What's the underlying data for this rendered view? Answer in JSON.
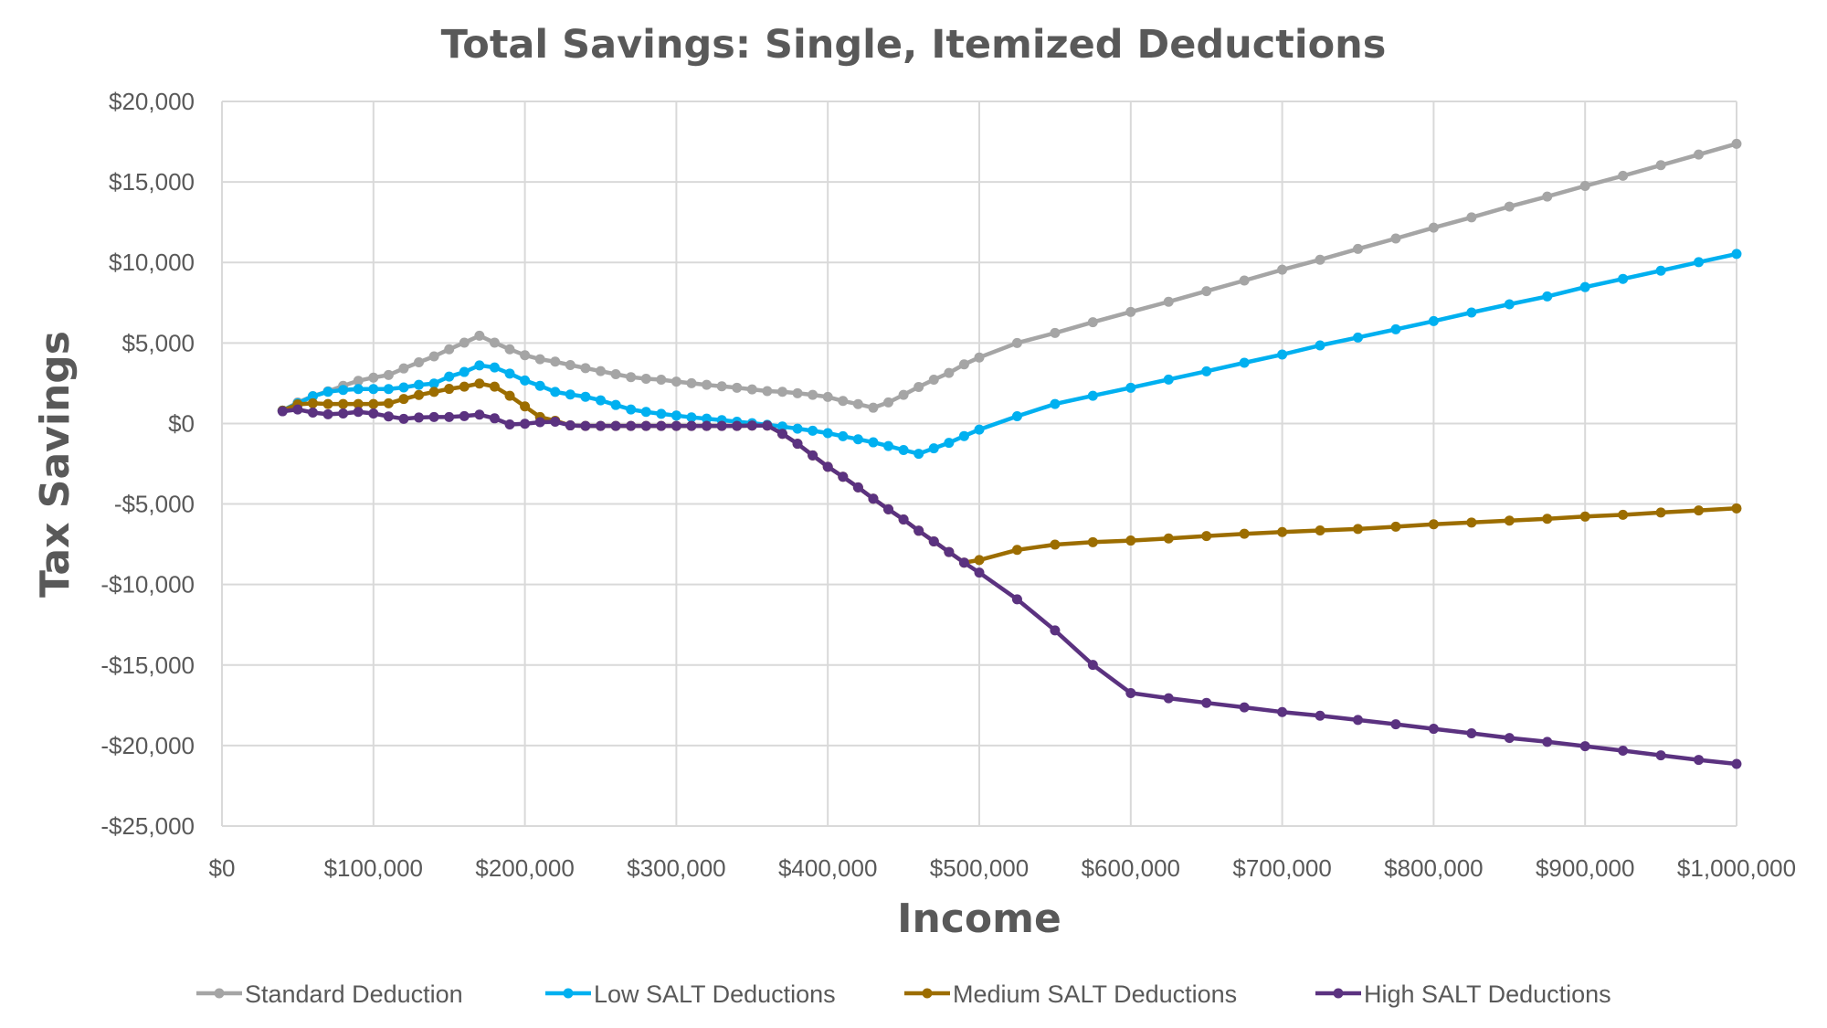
{
  "chart_data": {
    "type": "line",
    "title": "Total Savings: Single, Itemized Deductions",
    "xlabel": "Income",
    "ylabel": "Tax Savings",
    "xlim": [
      0,
      1000000
    ],
    "ylim": [
      -25000,
      20000
    ],
    "x_ticks": [
      0,
      100000,
      200000,
      300000,
      400000,
      500000,
      600000,
      700000,
      800000,
      900000,
      1000000
    ],
    "x_tick_labels": [
      "$0",
      "$100,000",
      "$200,000",
      "$300,000",
      "$400,000",
      "$500,000",
      "$600,000",
      "$700,000",
      "$800,000",
      "$900,000",
      "$1,000,000"
    ],
    "y_ticks": [
      20000,
      15000,
      10000,
      5000,
      0,
      -5000,
      -10000,
      -15000,
      -20000,
      -25000
    ],
    "y_tick_labels": [
      "$20,000",
      "$15,000",
      "$10,000",
      "$5,000",
      "$0",
      "-$5,000",
      "-$10,000",
      "-$15,000",
      "-$20,000",
      "-$25,000"
    ],
    "grid": true,
    "legend_position": "bottom",
    "x": [
      40000,
      50000,
      60000,
      70000,
      80000,
      90000,
      100000,
      110000,
      120000,
      130000,
      140000,
      150000,
      160000,
      170000,
      180000,
      190000,
      200000,
      210000,
      220000,
      230000,
      240000,
      250000,
      260000,
      270000,
      280000,
      290000,
      300000,
      310000,
      320000,
      330000,
      340000,
      350000,
      360000,
      370000,
      380000,
      390000,
      400000,
      410000,
      420000,
      430000,
      440000,
      450000,
      460000,
      470000,
      480000,
      490000,
      500000,
      525000,
      550000,
      575000,
      600000,
      625000,
      650000,
      675000,
      700000,
      725000,
      750000,
      775000,
      800000,
      825000,
      850000,
      875000,
      900000,
      925000,
      950000,
      975000,
      1000000
    ],
    "series": [
      {
        "name": "Standard Deduction",
        "color": "#a5a5a5",
        "values": [
          800,
          1300,
          1700,
          2000,
          2340,
          2650,
          2850,
          3010,
          3420,
          3800,
          4170,
          4610,
          5020,
          5450,
          5020,
          4610,
          4240,
          3990,
          3840,
          3630,
          3440,
          3250,
          3060,
          2880,
          2780,
          2720,
          2600,
          2500,
          2400,
          2310,
          2220,
          2120,
          2010,
          1970,
          1880,
          1780,
          1650,
          1400,
          1200,
          980,
          1310,
          1780,
          2270,
          2720,
          3140,
          3670,
          4100,
          5000,
          5620,
          6290,
          6930,
          7560,
          8220,
          8880,
          9550,
          10170,
          10840,
          11490,
          12160,
          12800,
          13470,
          14090,
          14750,
          15380,
          16040,
          16700,
          17370
        ]
      },
      {
        "name": "Low SALT Deductions",
        "color": "#00b0f0",
        "values": [
          800,
          1250,
          1690,
          1970,
          2080,
          2140,
          2140,
          2140,
          2240,
          2400,
          2480,
          2910,
          3200,
          3610,
          3480,
          3100,
          2670,
          2340,
          1960,
          1800,
          1660,
          1440,
          1150,
          870,
          720,
          600,
          490,
          380,
          300,
          210,
          110,
          20,
          -80,
          -190,
          -320,
          -450,
          -600,
          -790,
          -980,
          -1170,
          -1400,
          -1650,
          -1880,
          -1540,
          -1200,
          -780,
          -380,
          450,
          1210,
          1720,
          2220,
          2730,
          3240,
          3770,
          4280,
          4850,
          5340,
          5850,
          6360,
          6890,
          7400,
          7890,
          8470,
          8980,
          9490,
          10020,
          10530
        ]
      },
      {
        "name": "Medium SALT Deductions",
        "color": "#9c6d00",
        "values": [
          800,
          1190,
          1250,
          1210,
          1210,
          1210,
          1210,
          1250,
          1520,
          1770,
          1960,
          2150,
          2290,
          2480,
          2290,
          1720,
          1060,
          400,
          170,
          -120,
          -150,
          -150,
          -150,
          -150,
          -150,
          -150,
          -150,
          -150,
          -150,
          -150,
          -150,
          -130,
          -130,
          -640,
          -1260,
          -1980,
          -2690,
          -3310,
          -3970,
          -4670,
          -5330,
          -5960,
          -6660,
          -7320,
          -7980,
          -8640,
          -8480,
          -7850,
          -7520,
          -7370,
          -7270,
          -7140,
          -6990,
          -6850,
          -6740,
          -6640,
          -6550,
          -6410,
          -6260,
          -6150,
          -6030,
          -5920,
          -5780,
          -5670,
          -5530,
          -5400,
          -5270
        ]
      },
      {
        "name": "High SALT Deductions",
        "color": "#5b3280",
        "values": [
          760,
          870,
          680,
          570,
          620,
          720,
          620,
          440,
          290,
          370,
          400,
          400,
          460,
          550,
          320,
          -60,
          -20,
          80,
          110,
          -120,
          -150,
          -150,
          -150,
          -150,
          -150,
          -150,
          -150,
          -150,
          -150,
          -150,
          -150,
          -130,
          -130,
          -640,
          -1260,
          -1980,
          -2690,
          -3310,
          -3970,
          -4670,
          -5330,
          -5960,
          -6660,
          -7320,
          -7980,
          -8640,
          -9260,
          -10920,
          -12850,
          -14990,
          -16740,
          -17060,
          -17350,
          -17630,
          -17920,
          -18150,
          -18410,
          -18680,
          -18960,
          -19240,
          -19530,
          -19770,
          -20040,
          -20320,
          -20610,
          -20890,
          -21140
        ]
      }
    ]
  }
}
